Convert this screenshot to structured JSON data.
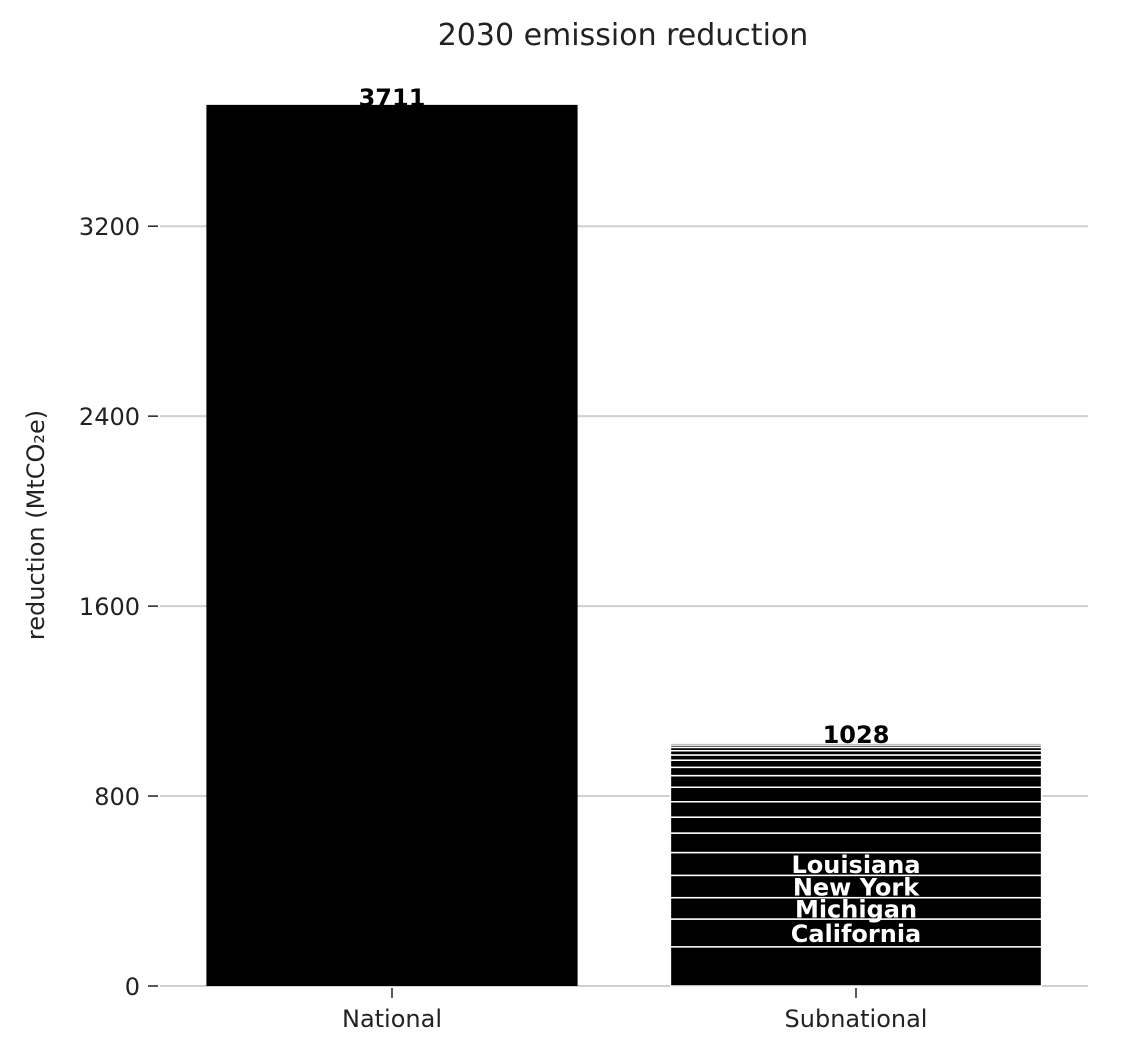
{
  "chart_data": {
    "type": "bar",
    "title": "2030 emission reduction",
    "xlabel": "",
    "ylabel": "reduction (MtCO₂e)",
    "ylim": [
      0,
      3900
    ],
    "yticks": [
      0,
      800,
      1600,
      2400,
      3200
    ],
    "grid": "horizontal",
    "colors": {
      "bar": "#000000",
      "segment_divider": "#ffffff",
      "grid": "#d0d0d0"
    },
    "categories": [
      "National",
      "Subnational"
    ],
    "totals": [
      3711,
      1028
    ],
    "stacks": [
      [
        3711
      ],
      [
        165,
        117,
        90,
        94,
        96,
        82,
        67,
        65,
        61,
        49,
        35,
        30,
        22,
        18,
        14,
        10,
        8,
        5
      ]
    ],
    "segment_labels": [
      [
        ""
      ],
      [
        "",
        "California",
        "Michigan",
        "New York",
        "Louisiana",
        "",
        "",
        "",
        "",
        "",
        "",
        "",
        "",
        "",
        "",
        "",
        "",
        ""
      ]
    ]
  }
}
